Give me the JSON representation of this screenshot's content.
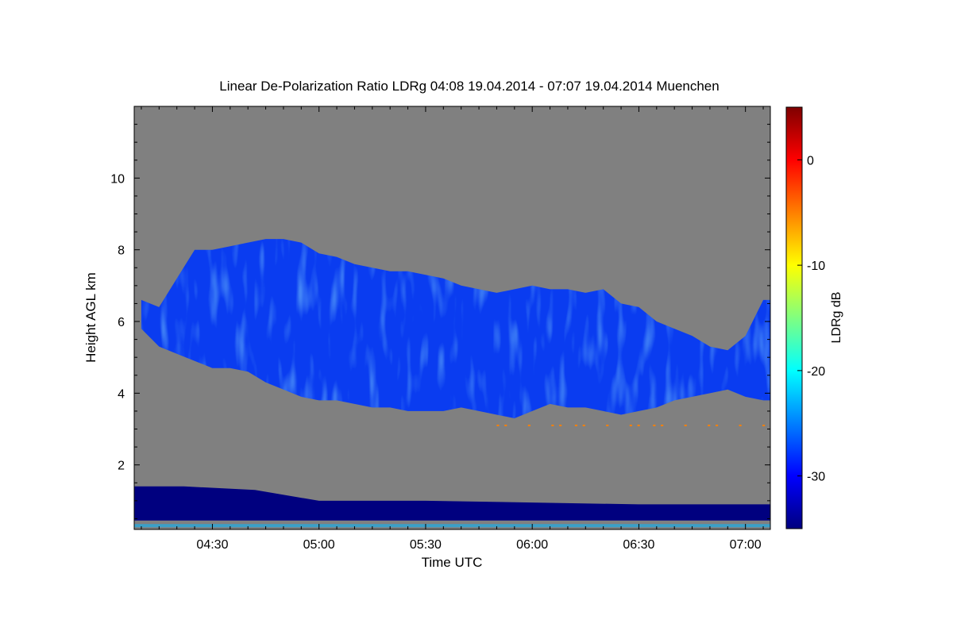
{
  "chart_data": {
    "type": "heatmap",
    "title": "Linear De-Polarization Ratio LDRg   04:08 19.04.2014 - 07:07 19.04.2014 Muenchen",
    "xlabel": "Time UTC",
    "ylabel": "Height AGL km",
    "x_range_minutes_utc": [
      248,
      427
    ],
    "ylim": [
      0.2,
      12.0
    ],
    "x_ticks": [
      {
        "label": "04:30",
        "minutes": 270
      },
      {
        "label": "05:00",
        "minutes": 300
      },
      {
        "label": "05:30",
        "minutes": 330
      },
      {
        "label": "06:00",
        "minutes": 360
      },
      {
        "label": "06:30",
        "minutes": 390
      },
      {
        "label": "07:00",
        "minutes": 420
      }
    ],
    "y_ticks": [
      {
        "label": "2",
        "value": 2
      },
      {
        "label": "4",
        "value": 4
      },
      {
        "label": "6",
        "value": 6
      },
      {
        "label": "8",
        "value": 8
      },
      {
        "label": "10",
        "value": 10
      }
    ],
    "colorbar": {
      "label": "LDRg dB",
      "range": [
        -35,
        5
      ],
      "ticks": [
        {
          "label": "0",
          "value": 0
        },
        {
          "label": "-10",
          "value": -10
        },
        {
          "label": "-20",
          "value": -20
        },
        {
          "label": "-30",
          "value": -30
        }
      ],
      "colors": [
        "#00007f",
        "#0000ff",
        "#0080ff",
        "#00ffff",
        "#80ff80",
        "#ffff00",
        "#ff8000",
        "#ff0000",
        "#7f0000"
      ]
    },
    "background_color": "#808080",
    "cloud_layer": {
      "typical_ldr_db": -28,
      "top_km": [
        [
          250,
          6.6
        ],
        [
          255,
          6.4
        ],
        [
          260,
          7.2
        ],
        [
          265,
          8.0
        ],
        [
          270,
          8.0
        ],
        [
          275,
          8.1
        ],
        [
          280,
          8.2
        ],
        [
          285,
          8.3
        ],
        [
          290,
          8.3
        ],
        [
          295,
          8.2
        ],
        [
          300,
          7.9
        ],
        [
          305,
          7.8
        ],
        [
          310,
          7.6
        ],
        [
          315,
          7.5
        ],
        [
          320,
          7.4
        ],
        [
          325,
          7.4
        ],
        [
          330,
          7.3
        ],
        [
          335,
          7.2
        ],
        [
          340,
          7.0
        ],
        [
          345,
          6.9
        ],
        [
          350,
          6.8
        ],
        [
          355,
          6.9
        ],
        [
          360,
          7.0
        ],
        [
          365,
          6.9
        ],
        [
          370,
          6.9
        ],
        [
          375,
          6.8
        ],
        [
          380,
          6.9
        ],
        [
          385,
          6.5
        ],
        [
          390,
          6.4
        ],
        [
          395,
          6.0
        ],
        [
          400,
          5.8
        ],
        [
          405,
          5.6
        ],
        [
          410,
          5.3
        ],
        [
          415,
          5.2
        ],
        [
          420,
          5.6
        ],
        [
          425,
          6.6
        ],
        [
          427,
          6.6
        ]
      ],
      "base_km": [
        [
          250,
          5.8
        ],
        [
          255,
          5.3
        ],
        [
          260,
          5.1
        ],
        [
          265,
          4.9
        ],
        [
          270,
          4.7
        ],
        [
          275,
          4.7
        ],
        [
          280,
          4.6
        ],
        [
          285,
          4.3
        ],
        [
          290,
          4.1
        ],
        [
          295,
          3.9
        ],
        [
          300,
          3.8
        ],
        [
          305,
          3.8
        ],
        [
          310,
          3.7
        ],
        [
          315,
          3.6
        ],
        [
          320,
          3.6
        ],
        [
          325,
          3.5
        ],
        [
          330,
          3.5
        ],
        [
          335,
          3.5
        ],
        [
          340,
          3.6
        ],
        [
          345,
          3.5
        ],
        [
          350,
          3.4
        ],
        [
          355,
          3.3
        ],
        [
          360,
          3.5
        ],
        [
          365,
          3.7
        ],
        [
          370,
          3.6
        ],
        [
          375,
          3.6
        ],
        [
          380,
          3.5
        ],
        [
          385,
          3.4
        ],
        [
          390,
          3.5
        ],
        [
          395,
          3.6
        ],
        [
          400,
          3.8
        ],
        [
          405,
          3.9
        ],
        [
          410,
          4.0
        ],
        [
          415,
          4.1
        ],
        [
          420,
          3.9
        ],
        [
          425,
          3.8
        ],
        [
          427,
          3.8
        ]
      ]
    },
    "boundary_layer": {
      "typical_ldr_db": -33,
      "top_km": [
        [
          248,
          1.4
        ],
        [
          262,
          1.4
        ],
        [
          282,
          1.3
        ],
        [
          300,
          1.0
        ],
        [
          330,
          1.0
        ],
        [
          360,
          0.95
        ],
        [
          390,
          0.9
        ],
        [
          427,
          0.9
        ]
      ],
      "base_km": 0.45
    },
    "scattered_signal": {
      "height_km": 3.1,
      "time_range_minutes": [
        350,
        427
      ],
      "typical_ldr_db": -5
    }
  }
}
